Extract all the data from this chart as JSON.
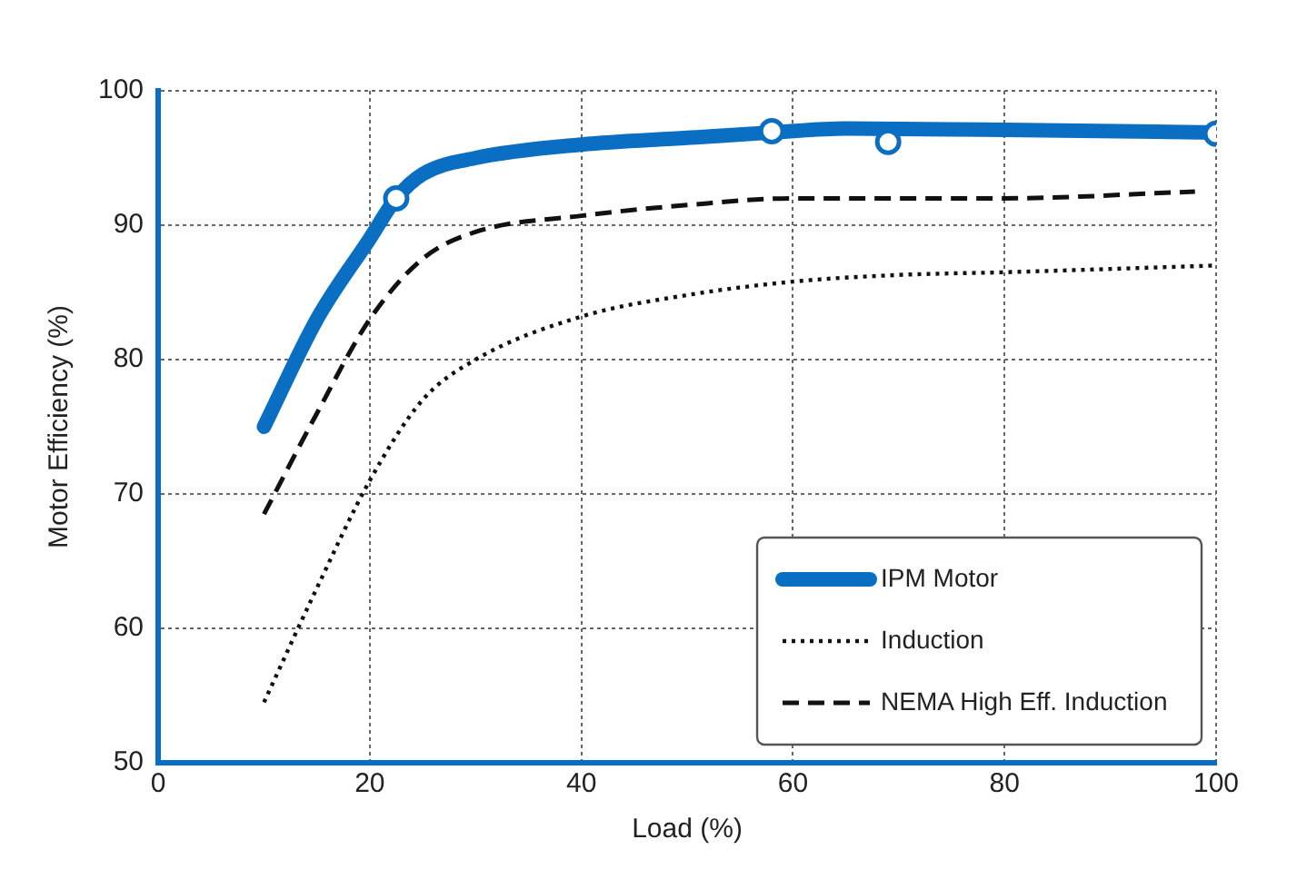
{
  "chart_data": {
    "type": "line",
    "xlabel": "Load (%)",
    "ylabel": "Motor Efficiency (%)",
    "xlim": [
      0,
      100
    ],
    "xticks": [
      0,
      20,
      40,
      60,
      80,
      100
    ],
    "ylim": [
      50,
      100
    ],
    "yticks": [
      50,
      60,
      70,
      80,
      90,
      100
    ],
    "grid": true,
    "legend": "bottom right",
    "series": [
      {
        "name": "IPM Motor",
        "color": "#0a6fc2",
        "line_style": "solid",
        "x": [
          10,
          15,
          20,
          22.5,
          25,
          30,
          40,
          50,
          58,
          65,
          80,
          100
        ],
        "values": [
          75,
          83,
          89,
          92,
          93.8,
          95,
          96,
          96.5,
          96.9,
          97.2,
          97.1,
          96.9
        ]
      },
      {
        "name": "Induction",
        "color": "#111111",
        "line_style": "dotted",
        "x": [
          10,
          15,
          20,
          25,
          30,
          40,
          50,
          60,
          70,
          80,
          100
        ],
        "values": [
          54.5,
          63,
          71,
          77,
          80,
          83.2,
          84.8,
          85.8,
          86.3,
          86.5,
          87
        ]
      },
      {
        "name": "NEMA High Eff. Induction",
        "color": "#111111",
        "line_style": "dashed",
        "x": [
          10,
          15,
          20,
          25,
          30,
          40,
          50,
          60,
          80,
          98
        ],
        "values": [
          68.5,
          76,
          83,
          87.5,
          89.5,
          90.7,
          91.5,
          92,
          92,
          92.5
        ]
      },
      {
        "type": "scatter",
        "color": "#0a6fc2",
        "marker": "circle",
        "x": [
          22.5,
          58,
          69,
          100
        ],
        "values": [
          92,
          97,
          96.2,
          96.8
        ]
      }
    ]
  }
}
